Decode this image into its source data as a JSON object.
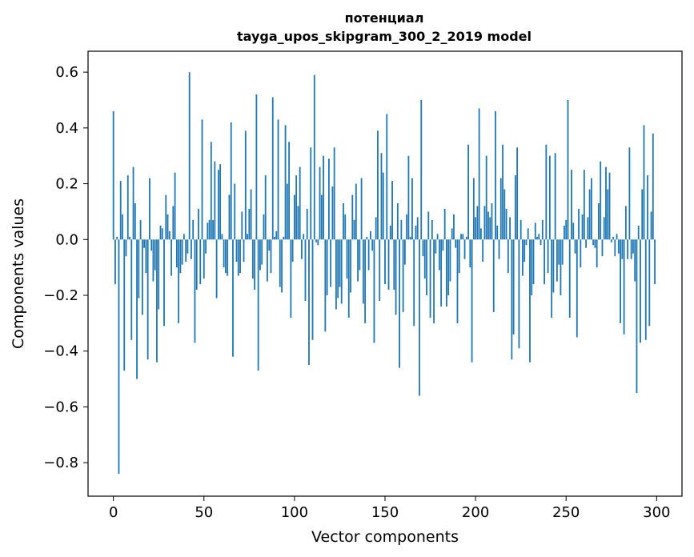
{
  "chart_data": {
    "type": "bar",
    "title": "потенциал",
    "subtitle": "tayga_upos_skipgram_300_2_2019 model",
    "xlabel": "Vector components",
    "ylabel": "Components values",
    "xlim": [
      -14,
      314
    ],
    "ylim": [
      -0.92,
      0.675
    ],
    "xticks": [
      0,
      50,
      100,
      150,
      200,
      250,
      300
    ],
    "xtick_labels": [
      "0",
      "50",
      "100",
      "150",
      "200",
      "250",
      "300"
    ],
    "yticks": [
      -0.8,
      -0.6,
      -0.4,
      -0.2,
      0.0,
      0.2,
      0.4,
      0.6
    ],
    "ytick_labels": [
      "−0.8",
      "−0.6",
      "−0.4",
      "−0.2",
      "0.0",
      "0.2",
      "0.4",
      "0.6"
    ],
    "grid": false,
    "bar_color": "#1f77b4",
    "x": [
      0,
      1,
      2,
      3,
      4,
      5,
      6,
      7,
      8,
      9,
      10,
      11,
      12,
      13,
      14,
      15,
      16,
      17,
      18,
      19,
      20,
      21,
      22,
      23,
      24,
      25,
      26,
      27,
      28,
      29,
      30,
      31,
      32,
      33,
      34,
      35,
      36,
      37,
      38,
      39,
      40,
      41,
      42,
      43,
      44,
      45,
      46,
      47,
      48,
      49,
      50,
      51,
      52,
      53,
      54,
      55,
      56,
      57,
      58,
      59,
      60,
      61,
      62,
      63,
      64,
      65,
      66,
      67,
      68,
      69,
      70,
      71,
      72,
      73,
      74,
      75,
      76,
      77,
      78,
      79,
      80,
      81,
      82,
      83,
      84,
      85,
      86,
      87,
      88,
      89,
      90,
      91,
      92,
      93,
      94,
      95,
      96,
      97,
      98,
      99,
      100,
      101,
      102,
      103,
      104,
      105,
      106,
      107,
      108,
      109,
      110,
      111,
      112,
      113,
      114,
      115,
      116,
      117,
      118,
      119,
      120,
      121,
      122,
      123,
      124,
      125,
      126,
      127,
      128,
      129,
      130,
      131,
      132,
      133,
      134,
      135,
      136,
      137,
      138,
      139,
      140,
      141,
      142,
      143,
      144,
      145,
      146,
      147,
      148,
      149,
      150,
      151,
      152,
      153,
      154,
      155,
      156,
      157,
      158,
      159,
      160,
      161,
      162,
      163,
      164,
      165,
      166,
      167,
      168,
      169,
      170,
      171,
      172,
      173,
      174,
      175,
      176,
      177,
      178,
      179,
      180,
      181,
      182,
      183,
      184,
      185,
      186,
      187,
      188,
      189,
      190,
      191,
      192,
      193,
      194,
      195,
      196,
      197,
      198,
      199,
      200,
      201,
      202,
      203,
      204,
      205,
      206,
      207,
      208,
      209,
      210,
      211,
      212,
      213,
      214,
      215,
      216,
      217,
      218,
      219,
      220,
      221,
      222,
      223,
      224,
      225,
      226,
      227,
      228,
      229,
      230,
      231,
      232,
      233,
      234,
      235,
      236,
      237,
      238,
      239,
      240,
      241,
      242,
      243,
      244,
      245,
      246,
      247,
      248,
      249,
      250,
      251,
      252,
      253,
      254,
      255,
      256,
      257,
      258,
      259,
      260,
      261,
      262,
      263,
      264,
      265,
      266,
      267,
      268,
      269,
      270,
      271,
      272,
      273,
      274,
      275,
      276,
      277,
      278,
      279,
      280,
      281,
      282,
      283,
      284,
      285,
      286,
      287,
      288,
      289,
      290,
      291,
      292,
      293,
      294,
      295,
      296,
      297,
      298,
      299
    ],
    "values": [
      0.46,
      -0.16,
      0.01,
      -0.84,
      0.21,
      0.09,
      -0.47,
      -0.06,
      0.23,
      0.01,
      -0.36,
      0.26,
      0.13,
      -0.5,
      -0.21,
      0.07,
      -0.27,
      -0.03,
      -0.12,
      -0.43,
      0.22,
      -0.04,
      -0.15,
      -0.11,
      -0.44,
      -0.25,
      0.05,
      0.04,
      -0.31,
      0.16,
      0.09,
      0.03,
      -0.13,
      0.12,
      0.24,
      -0.1,
      -0.3,
      -0.12,
      -0.09,
      0.02,
      -0.08,
      -0.05,
      0.6,
      -0.07,
      0.07,
      -0.37,
      -0.18,
      0.11,
      -0.16,
      0.43,
      -0.14,
      -0.05,
      0.06,
      0.07,
      0.35,
      0.07,
      0.28,
      -0.21,
      0.25,
      0.27,
      0.02,
      -0.1,
      -0.12,
      -0.13,
      0.16,
      0.42,
      -0.42,
      0.2,
      -0.08,
      -0.13,
      -0.12,
      0.1,
      -0.08,
      0.39,
      0.02,
      0.11,
      0.18,
      -0.14,
      -0.18,
      0.52,
      -0.47,
      -0.11,
      -0.09,
      0.09,
      0.23,
      -0.15,
      -0.04,
      -0.12,
      0.51,
      0.01,
      0.03,
      0.43,
      -0.17,
      -0.19,
      0.01,
      0.41,
      0.2,
      0.35,
      -0.28,
      -0.08,
      0.16,
      0.23,
      0.12,
      0.26,
      -0.07,
      0.02,
      -0.22,
      0.11,
      -0.45,
      0.33,
      -0.36,
      0.59,
      -0.01,
      -0.02,
      0.26,
      0.16,
      0.3,
      -0.33,
      -0.2,
      0.29,
      -0.17,
      0.19,
      0.33,
      -0.25,
      -0.21,
      -0.17,
      -0.23,
      0.13,
      0.09,
      -0.14,
      -0.28,
      -0.19,
      0.16,
      0.07,
      0.2,
      -0.15,
      -0.11,
      0.22,
      -0.23,
      -0.3,
      0.01,
      -0.11,
      0.03,
      -0.04,
      -0.37,
      0.08,
      0.39,
      -0.22,
      0.31,
      0.24,
      -0.16,
      0.45,
      -0.18,
      0.05,
      0.21,
      -0.18,
      -0.27,
      0.13,
      -0.46,
      0.07,
      -0.26,
      -0.09,
      0.09,
      0.3,
      0.01,
      0.22,
      -0.31,
      0.05,
      0.08,
      -0.56,
      0.5,
      -0.06,
      -0.14,
      -0.2,
      0.1,
      -0.28,
      0.07,
      -0.3,
      -0.05,
      0.02,
      -0.11,
      -0.24,
      -0.04,
      0.11,
      -0.24,
      -0.2,
      -0.15,
      0.04,
      0.09,
      -0.03,
      -0.3,
      -0.12,
      0.02,
      0.02,
      -0.07,
      0.01,
      0.34,
      -0.1,
      -0.44,
      0.22,
      0.08,
      0.12,
      0.47,
      0.04,
      -0.08,
      0.12,
      0.3,
      0.1,
      0.08,
      0.13,
      -0.26,
      0.46,
      0.05,
      -0.07,
      0.22,
      0.34,
      0.18,
      0.11,
      -0.12,
      0.08,
      -0.43,
      -0.34,
      0.23,
      0.33,
      -0.39,
      0.07,
      -0.13,
      -0.08,
      -0.02,
      0.04,
      -0.44,
      -0.2,
      -0.16,
      0.06,
      0.01,
      0.02,
      -0.02,
      0.07,
      -0.16,
      0.34,
      -0.12,
      0.3,
      -0.28,
      -0.19,
      0.31,
      -0.15,
      -0.09,
      -0.2,
      -0.09,
      0.05,
      0.07,
      0.5,
      -0.28,
      0.25,
      0.06,
      -0.05,
      -0.35,
      0.11,
      -0.1,
      0.09,
      0.25,
      -0.03,
      0.08,
      0.18,
      0.22,
      -0.02,
      -0.03,
      -0.1,
      0.13,
      0.28,
      -0.06,
      0.08,
      0.26,
      0.18,
      0.24,
      -0.01,
      0.01,
      -0.06,
      0.02,
      -0.05,
      -0.3,
      -0.07,
      -0.34,
      0.12,
      -0.07,
      0.33,
      -0.07,
      -0.05,
      -0.15,
      -0.55,
      0.05,
      -0.37,
      0.18,
      0.41,
      -0.36,
      0.23,
      -0.31,
      0.1,
      0.38,
      -0.16
    ]
  }
}
